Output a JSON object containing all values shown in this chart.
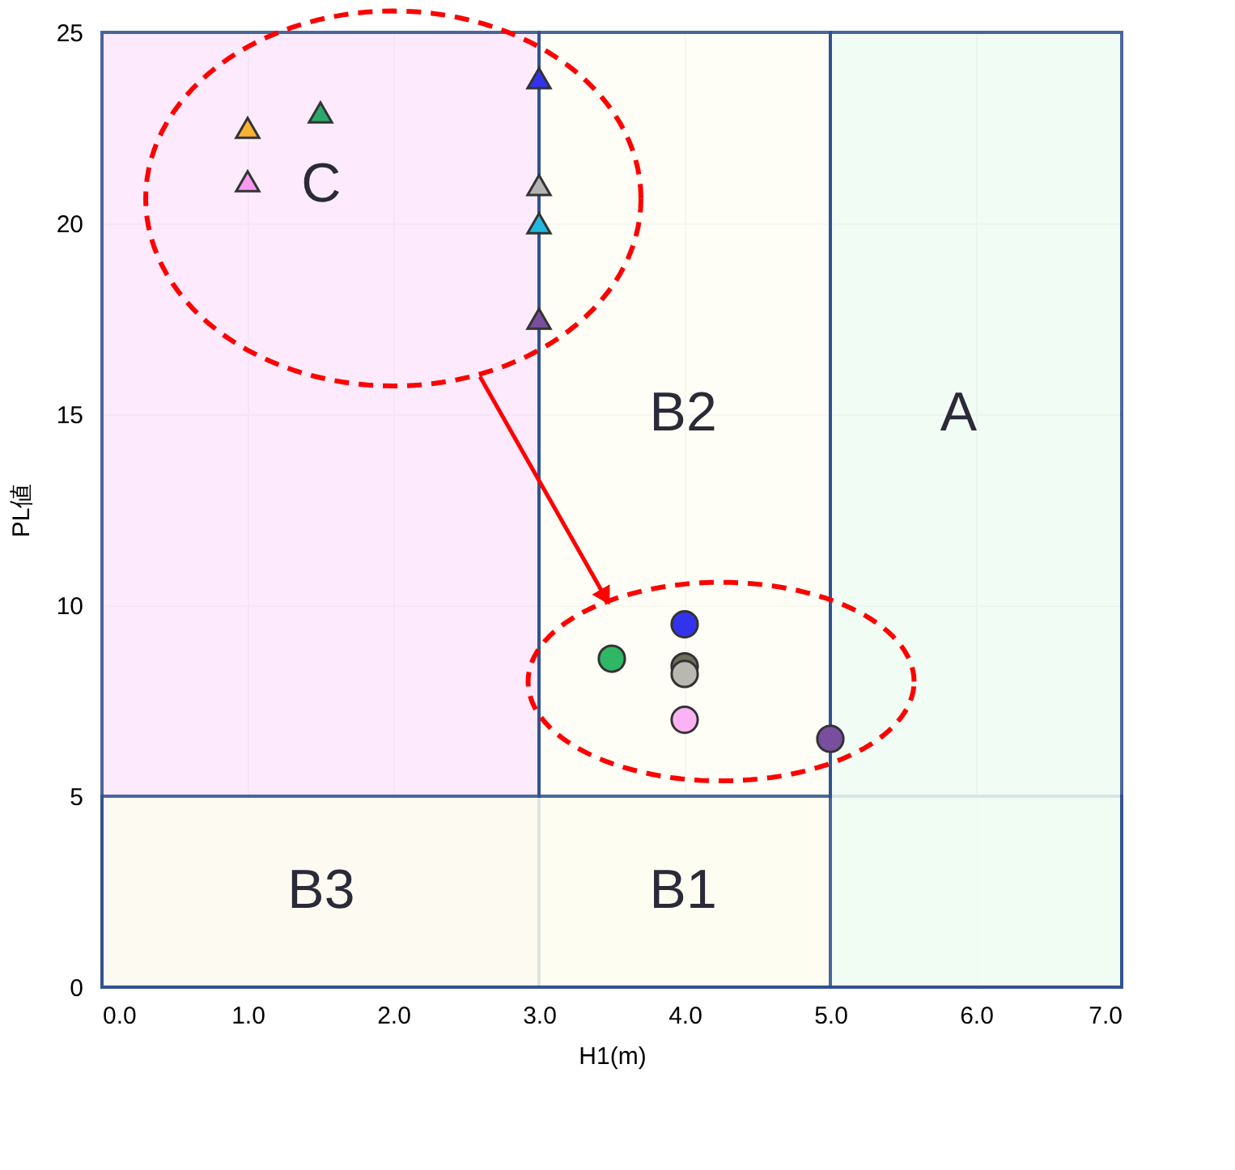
{
  "chart_data": {
    "type": "scatter",
    "xlabel": "H1(m)",
    "ylabel": "PL値",
    "xlim": [
      0,
      7
    ],
    "ylim": [
      0,
      25
    ],
    "xticks": [
      {
        "value": 0,
        "label": "0.0"
      },
      {
        "value": 1,
        "label": "1.0"
      },
      {
        "value": 2,
        "label": "2.0"
      },
      {
        "value": 3,
        "label": "3.0"
      },
      {
        "value": 4,
        "label": "4.0"
      },
      {
        "value": 5,
        "label": "5.0"
      },
      {
        "value": 6,
        "label": "6.0"
      },
      {
        "value": 7,
        "label": "7.0"
      }
    ],
    "yticks": [
      0,
      5,
      10,
      15,
      20,
      25
    ],
    "grid": true,
    "bands": [
      {
        "axis": "x",
        "from": 0,
        "to": 3,
        "color": "#fde8fd"
      },
      {
        "axis": "x",
        "from": 3,
        "to": 5,
        "color": "#fefef5"
      },
      {
        "axis": "y",
        "from": 0,
        "to": 5,
        "color": "#fdfdf1"
      },
      {
        "axis": "x",
        "from": 5,
        "to": 7,
        "color": "#effcf3"
      }
    ],
    "annotations": [
      "C",
      "B2",
      "A",
      "B3",
      "B1"
    ],
    "series": [
      {
        "marker": "triangle",
        "x": [
          1.0,
          1.0,
          1.5,
          3.0,
          3.0,
          3.0,
          3.0
        ],
        "values": [
          22.5,
          21.1,
          22.9,
          23.8,
          21.0,
          20.0,
          17.5
        ],
        "colors": [
          "#f9b233",
          "#f99af0",
          "#2ea86a",
          "#3333ee",
          "#b3b3b3",
          "#22b8e0",
          "#7a4e9e"
        ]
      },
      {
        "marker": "circle",
        "x": [
          3.5,
          4.0,
          4.0,
          4.0,
          4.0,
          5.0
        ],
        "values": [
          8.6,
          9.5,
          8.4,
          8.2,
          7.0,
          6.5
        ],
        "colors": [
          "#2eb866",
          "#3333ee",
          "#6e6e5a",
          "#b8b8b0",
          "#fdb3f3",
          "#7a4e9e"
        ]
      }
    ]
  }
}
